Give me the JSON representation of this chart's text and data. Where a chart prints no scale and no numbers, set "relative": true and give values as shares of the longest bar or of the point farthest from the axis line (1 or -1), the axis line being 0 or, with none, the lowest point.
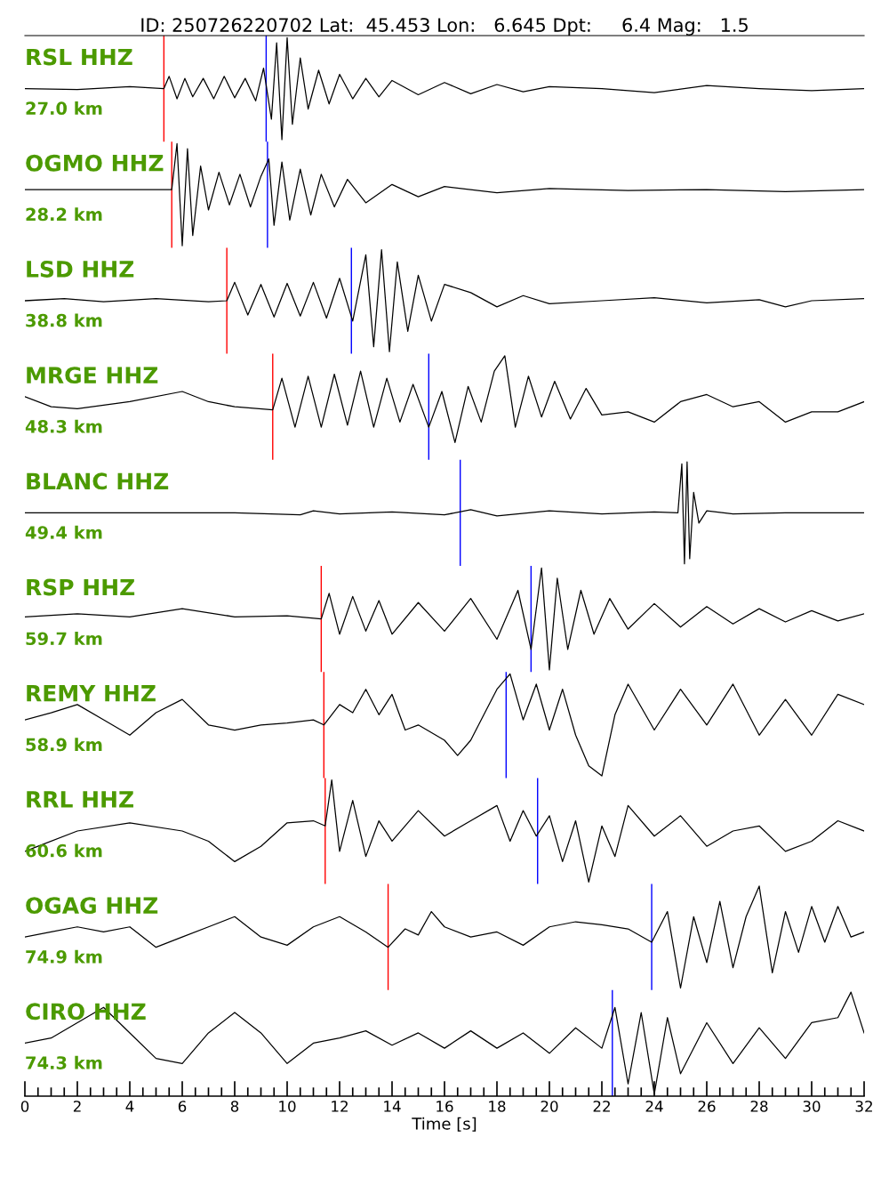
{
  "chart_data": [
    {
      "type": "line",
      "title": "ID: 250726220702 Lat:  45.453 Lon:   6.645 Dpt:     6.4 Mag:   1.5",
      "relative": true,
      "xlim": [
        0,
        32
      ],
      "tick_labels": false,
      "annotations": [
        "RSL HHZ",
        "27.0 km"
      ],
      "ref_lines": [
        {
          "axis": "x",
          "value": 5.3,
          "color": "#ff0000"
        },
        {
          "axis": "x",
          "value": 9.2,
          "color": "#0000ff"
        }
      ],
      "series": [
        {
          "color": "#000000",
          "x": [
            0,
            2,
            4,
            5.3,
            5.5,
            5.8,
            6.1,
            6.4,
            6.8,
            7.2,
            7.6,
            8,
            8.4,
            8.8,
            9.1,
            9.4,
            9.6,
            9.8,
            10,
            10.2,
            10.5,
            10.8,
            11.2,
            11.6,
            12,
            12.5,
            13,
            13.5,
            14,
            15,
            16,
            17,
            18,
            19,
            20,
            22,
            24,
            26,
            28,
            30,
            32
          ],
          "values": [
            0.5,
            0.49,
            0.52,
            0.5,
            0.62,
            0.4,
            0.6,
            0.42,
            0.6,
            0.4,
            0.62,
            0.41,
            0.6,
            0.38,
            0.7,
            0.2,
            0.95,
            0,
            1,
            0.15,
            0.8,
            0.3,
            0.68,
            0.35,
            0.64,
            0.4,
            0.6,
            0.42,
            0.58,
            0.44,
            0.56,
            0.45,
            0.54,
            0.47,
            0.52,
            0.5,
            0.46,
            0.53,
            0.5,
            0.48,
            0.5
          ]
        }
      ]
    },
    {
      "type": "line",
      "relative": true,
      "xlim": [
        0,
        32
      ],
      "tick_labels": false,
      "annotations": [
        "OGMO HHZ",
        "28.2 km"
      ],
      "ref_lines": [
        {
          "axis": "x",
          "value": 5.6,
          "color": "#ff0000"
        },
        {
          "axis": "x",
          "value": 9.25,
          "color": "#0000ff"
        }
      ],
      "series": [
        {
          "color": "#000000",
          "x": [
            0,
            3,
            5.6,
            5.8,
            6.0,
            6.2,
            6.4,
            6.7,
            7,
            7.4,
            7.8,
            8.2,
            8.6,
            9,
            9.3,
            9.5,
            9.8,
            10.1,
            10.5,
            10.9,
            11.3,
            11.8,
            12.3,
            13,
            14,
            15,
            16,
            18,
            20,
            23,
            26,
            29,
            32
          ],
          "values": [
            0.55,
            0.55,
            0.55,
            1,
            0,
            0.95,
            0.1,
            0.78,
            0.35,
            0.72,
            0.4,
            0.7,
            0.38,
            0.68,
            0.85,
            0.2,
            0.82,
            0.25,
            0.75,
            0.3,
            0.7,
            0.38,
            0.65,
            0.42,
            0.6,
            0.48,
            0.58,
            0.52,
            0.56,
            0.54,
            0.55,
            0.53,
            0.55
          ]
        }
      ]
    },
    {
      "type": "line",
      "relative": true,
      "xlim": [
        0,
        32
      ],
      "tick_labels": false,
      "annotations": [
        "LSD HHZ",
        "38.8 km"
      ],
      "ref_lines": [
        {
          "axis": "x",
          "value": 7.7,
          "color": "#ff0000"
        },
        {
          "axis": "x",
          "value": 12.45,
          "color": "#0000ff"
        }
      ],
      "series": [
        {
          "color": "#000000",
          "x": [
            0,
            1.5,
            3,
            5,
            7,
            7.7,
            8,
            8.5,
            9,
            9.5,
            10,
            10.5,
            11,
            11.5,
            12,
            12.5,
            13,
            13.3,
            13.6,
            13.9,
            14.2,
            14.6,
            15,
            15.5,
            16,
            17,
            18,
            19,
            20,
            22,
            24,
            26,
            28,
            29,
            30,
            32
          ],
          "values": [
            0.5,
            0.52,
            0.49,
            0.52,
            0.49,
            0.5,
            0.68,
            0.36,
            0.66,
            0.34,
            0.67,
            0.35,
            0.68,
            0.33,
            0.72,
            0.3,
            0.95,
            0.05,
            1,
            0,
            0.88,
            0.2,
            0.75,
            0.3,
            0.66,
            0.58,
            0.44,
            0.55,
            0.47,
            0.5,
            0.53,
            0.48,
            0.51,
            0.44,
            0.5,
            0.52
          ]
        }
      ]
    },
    {
      "type": "line",
      "relative": true,
      "xlim": [
        0,
        32
      ],
      "tick_labels": false,
      "annotations": [
        "MRGE HHZ",
        "48.3 km"
      ],
      "ref_lines": [
        {
          "axis": "x",
          "value": 9.45,
          "color": "#ff0000"
        },
        {
          "axis": "x",
          "value": 15.4,
          "color": "#0000ff"
        }
      ],
      "series": [
        {
          "color": "#000000",
          "x": [
            0,
            1,
            2,
            4,
            6,
            7,
            8,
            9.45,
            9.8,
            10.3,
            10.8,
            11.3,
            11.8,
            12.3,
            12.8,
            13.3,
            13.8,
            14.3,
            14.8,
            15.4,
            15.9,
            16.4,
            16.9,
            17.4,
            17.9,
            18.3,
            18.7,
            19.2,
            19.7,
            20.2,
            20.8,
            21.4,
            22,
            23,
            24,
            25,
            26,
            27,
            28,
            29,
            30,
            31,
            32
          ],
          "values": [
            0.6,
            0.5,
            0.48,
            0.55,
            0.65,
            0.55,
            0.5,
            0.47,
            0.78,
            0.3,
            0.8,
            0.3,
            0.82,
            0.32,
            0.85,
            0.3,
            0.78,
            0.35,
            0.72,
            0.3,
            0.65,
            0.15,
            0.7,
            0.35,
            0.85,
            1,
            0.3,
            0.8,
            0.4,
            0.75,
            0.38,
            0.68,
            0.42,
            0.45,
            0.35,
            0.55,
            0.62,
            0.5,
            0.55,
            0.35,
            0.45,
            0.45,
            0.55
          ]
        }
      ]
    },
    {
      "type": "line",
      "relative": true,
      "xlim": [
        0,
        32
      ],
      "tick_labels": false,
      "annotations": [
        "BLANC HHZ",
        "49.4 km"
      ],
      "ref_lines": [
        {
          "axis": "x",
          "value": 16.6,
          "color": "#0000ff"
        }
      ],
      "series": [
        {
          "color": "#000000",
          "x": [
            0,
            4,
            8,
            10.5,
            11,
            12,
            14,
            16,
            17,
            18,
            20,
            22,
            24,
            24.9,
            25.05,
            25.15,
            25.25,
            25.35,
            25.5,
            25.7,
            26,
            27,
            29,
            31,
            32
          ],
          "values": [
            0.5,
            0.5,
            0.5,
            0.48,
            0.52,
            0.49,
            0.51,
            0.48,
            0.53,
            0.47,
            0.52,
            0.49,
            0.51,
            0.5,
            0.98,
            0,
            1,
            0.05,
            0.7,
            0.4,
            0.52,
            0.49,
            0.5,
            0.5,
            0.5
          ]
        }
      ]
    },
    {
      "type": "line",
      "relative": true,
      "xlim": [
        0,
        32
      ],
      "tick_labels": false,
      "annotations": [
        "RSP HHZ",
        "59.7 km"
      ],
      "ref_lines": [
        {
          "axis": "x",
          "value": 11.3,
          "color": "#ff0000"
        },
        {
          "axis": "x",
          "value": 19.3,
          "color": "#0000ff"
        }
      ],
      "series": [
        {
          "color": "#000000",
          "x": [
            0,
            2,
            4,
            6,
            8,
            10,
            11.3,
            11.6,
            12,
            12.5,
            13,
            13.5,
            14,
            15,
            16,
            17,
            18,
            18.8,
            19.3,
            19.7,
            20,
            20.3,
            20.7,
            21.2,
            21.7,
            22.3,
            23,
            24,
            25,
            26,
            27,
            28,
            29,
            30,
            31,
            32
          ],
          "values": [
            0.52,
            0.55,
            0.52,
            0.6,
            0.52,
            0.53,
            0.5,
            0.75,
            0.35,
            0.72,
            0.38,
            0.68,
            0.35,
            0.66,
            0.38,
            0.7,
            0.3,
            0.78,
            0.2,
            1,
            0,
            0.9,
            0.2,
            0.78,
            0.35,
            0.7,
            0.4,
            0.65,
            0.42,
            0.62,
            0.45,
            0.6,
            0.47,
            0.58,
            0.48,
            0.55
          ]
        }
      ]
    },
    {
      "type": "line",
      "relative": true,
      "xlim": [
        0,
        32
      ],
      "tick_labels": false,
      "annotations": [
        "REMY HHZ",
        "58.9 km"
      ],
      "ref_lines": [
        {
          "axis": "x",
          "value": 11.4,
          "color": "#ff0000"
        },
        {
          "axis": "x",
          "value": 18.35,
          "color": "#0000ff"
        }
      ],
      "series": [
        {
          "color": "#000000",
          "x": [
            0,
            1,
            2,
            3,
            4,
            5,
            6,
            7,
            8,
            9,
            10,
            11,
            11.4,
            12,
            12.5,
            13,
            13.5,
            14,
            14.5,
            15,
            16,
            16.5,
            17,
            17.5,
            18,
            18.5,
            19,
            19.5,
            20,
            20.5,
            21,
            21.5,
            22,
            22.5,
            23,
            24,
            25,
            26,
            27,
            28,
            29,
            30,
            31,
            32
          ],
          "values": [
            0.55,
            0.62,
            0.7,
            0.55,
            0.4,
            0.62,
            0.75,
            0.5,
            0.45,
            0.5,
            0.52,
            0.55,
            0.5,
            0.7,
            0.62,
            0.85,
            0.6,
            0.8,
            0.45,
            0.5,
            0.35,
            0.2,
            0.35,
            0.6,
            0.85,
            1,
            0.55,
            0.9,
            0.45,
            0.85,
            0.4,
            0.1,
            0.0,
            0.6,
            0.9,
            0.45,
            0.85,
            0.5,
            0.9,
            0.4,
            0.75,
            0.4,
            0.8,
            0.7
          ]
        }
      ]
    },
    {
      "type": "line",
      "relative": true,
      "xlim": [
        0,
        32
      ],
      "tick_labels": false,
      "annotations": [
        "RRL HHZ",
        "60.6 km"
      ],
      "ref_lines": [
        {
          "axis": "x",
          "value": 11.45,
          "color": "#ff0000"
        },
        {
          "axis": "x",
          "value": 19.55,
          "color": "#0000ff"
        }
      ],
      "series": [
        {
          "color": "#000000",
          "x": [
            0,
            0.5,
            2,
            4,
            6,
            7,
            8,
            9,
            10,
            11,
            11.45,
            11.7,
            12,
            12.5,
            13,
            13.5,
            14,
            15,
            16,
            17,
            18,
            18.5,
            19,
            19.5,
            20,
            20.5,
            21,
            21.5,
            22,
            22.5,
            23,
            24,
            25,
            26,
            27,
            28,
            29,
            30,
            31,
            32
          ],
          "values": [
            0.3,
            0.35,
            0.5,
            0.58,
            0.5,
            0.4,
            0.2,
            0.35,
            0.58,
            0.6,
            0.55,
            1,
            0.3,
            0.8,
            0.25,
            0.6,
            0.4,
            0.7,
            0.45,
            0.6,
            0.75,
            0.4,
            0.7,
            0.45,
            0.65,
            0.2,
            0.6,
            0,
            0.55,
            0.25,
            0.75,
            0.45,
            0.65,
            0.35,
            0.5,
            0.55,
            0.3,
            0.4,
            0.6,
            0.5
          ]
        }
      ]
    },
    {
      "type": "line",
      "relative": true,
      "xlim": [
        0,
        32
      ],
      "tick_labels": false,
      "annotations": [
        "OGAG HHZ",
        "74.9 km"
      ],
      "ref_lines": [
        {
          "axis": "x",
          "value": 13.85,
          "color": "#ff0000"
        },
        {
          "axis": "x",
          "value": 23.9,
          "color": "#0000ff"
        }
      ],
      "series": [
        {
          "color": "#000000",
          "x": [
            0,
            1,
            2,
            3,
            4,
            5,
            6,
            7,
            8,
            9,
            10,
            11,
            12,
            13,
            13.85,
            14.5,
            15,
            15.5,
            16,
            17,
            18,
            19,
            20,
            21,
            22,
            23,
            23.9,
            24.5,
            25,
            25.5,
            26,
            26.5,
            27,
            27.5,
            28,
            28.5,
            29,
            29.5,
            30,
            30.5,
            31,
            31.5,
            32
          ],
          "values": [
            0.5,
            0.55,
            0.6,
            0.55,
            0.6,
            0.4,
            0.5,
            0.6,
            0.7,
            0.5,
            0.42,
            0.6,
            0.7,
            0.55,
            0.4,
            0.58,
            0.52,
            0.75,
            0.6,
            0.5,
            0.55,
            0.42,
            0.6,
            0.65,
            0.62,
            0.58,
            0.45,
            0.75,
            0,
            0.7,
            0.25,
            0.85,
            0.2,
            0.7,
            1,
            0.15,
            0.75,
            0.35,
            0.8,
            0.45,
            0.8,
            0.5,
            0.55
          ]
        }
      ]
    },
    {
      "type": "line",
      "relative": true,
      "xlim": [
        0,
        32
      ],
      "tick_labels": "x",
      "xlabel": "Time [s]",
      "annotations": [
        "CIRO HHZ",
        "74.3 km"
      ],
      "ref_lines": [
        {
          "axis": "x",
          "value": 22.4,
          "color": "#0000ff"
        }
      ],
      "xticks": [
        0,
        {
          "value": 0.5,
          "label": null
        },
        {
          "value": 1,
          "label": null
        },
        {
          "value": 1.5,
          "label": null
        },
        2,
        {
          "value": 2.5,
          "label": null
        },
        {
          "value": 3,
          "label": null
        },
        {
          "value": 3.5,
          "label": null
        },
        4,
        {
          "value": 4.5,
          "label": null
        },
        {
          "value": 5,
          "label": null
        },
        {
          "value": 5.5,
          "label": null
        },
        6,
        {
          "value": 6.5,
          "label": null
        },
        {
          "value": 7,
          "label": null
        },
        {
          "value": 7.5,
          "label": null
        },
        8,
        {
          "value": 8.5,
          "label": null
        },
        {
          "value": 9,
          "label": null
        },
        {
          "value": 9.5,
          "label": null
        },
        10,
        {
          "value": 10.5,
          "label": null
        },
        {
          "value": 11,
          "label": null
        },
        {
          "value": 11.5,
          "label": null
        },
        12,
        {
          "value": 12.5,
          "label": null
        },
        {
          "value": 13,
          "label": null
        },
        {
          "value": 13.5,
          "label": null
        },
        14,
        {
          "value": 14.5,
          "label": null
        },
        {
          "value": 15,
          "label": null
        },
        {
          "value": 15.5,
          "label": null
        },
        16,
        {
          "value": 16.5,
          "label": null
        },
        {
          "value": 17,
          "label": null
        },
        {
          "value": 17.5,
          "label": null
        },
        18,
        {
          "value": 18.5,
          "label": null
        },
        {
          "value": 19,
          "label": null
        },
        {
          "value": 19.5,
          "label": null
        },
        20,
        {
          "value": 20.5,
          "label": null
        },
        {
          "value": 21,
          "label": null
        },
        {
          "value": 21.5,
          "label": null
        },
        22,
        {
          "value": 22.5,
          "label": null
        },
        {
          "value": 23,
          "label": null
        },
        {
          "value": 23.5,
          "label": null
        },
        24,
        {
          "value": 24.5,
          "label": null
        },
        {
          "value": 25,
          "label": null
        },
        {
          "value": 25.5,
          "label": null
        },
        26,
        {
          "value": 26.5,
          "label": null
        },
        {
          "value": 27,
          "label": null
        },
        {
          "value": 27.5,
          "label": null
        },
        28,
        {
          "value": 28.5,
          "label": null
        },
        {
          "value": 29,
          "label": null
        },
        {
          "value": 29.5,
          "label": null
        },
        30,
        {
          "value": 30.5,
          "label": null
        },
        {
          "value": 31,
          "label": null
        },
        {
          "value": 31.5,
          "label": null
        },
        32
      ],
      "series": [
        {
          "color": "#000000",
          "x": [
            0,
            1,
            2,
            3,
            4,
            5,
            6,
            7,
            8,
            9,
            10,
            11,
            12,
            13,
            14,
            15,
            16,
            17,
            18,
            19,
            20,
            21,
            22,
            22.5,
            23,
            23.5,
            24,
            24.5,
            25,
            26,
            27,
            28,
            29,
            30,
            31,
            31.5,
            32
          ],
          "values": [
            0.5,
            0.55,
            0.7,
            0.85,
            0.6,
            0.35,
            0.3,
            0.6,
            0.8,
            0.6,
            0.3,
            0.5,
            0.55,
            0.62,
            0.48,
            0.6,
            0.45,
            0.62,
            0.45,
            0.6,
            0.4,
            0.65,
            0.45,
            0.85,
            0.1,
            0.8,
            0.0,
            0.75,
            0.2,
            0.7,
            0.3,
            0.65,
            0.35,
            0.7,
            0.75,
            1,
            0.6
          ]
        }
      ]
    }
  ]
}
